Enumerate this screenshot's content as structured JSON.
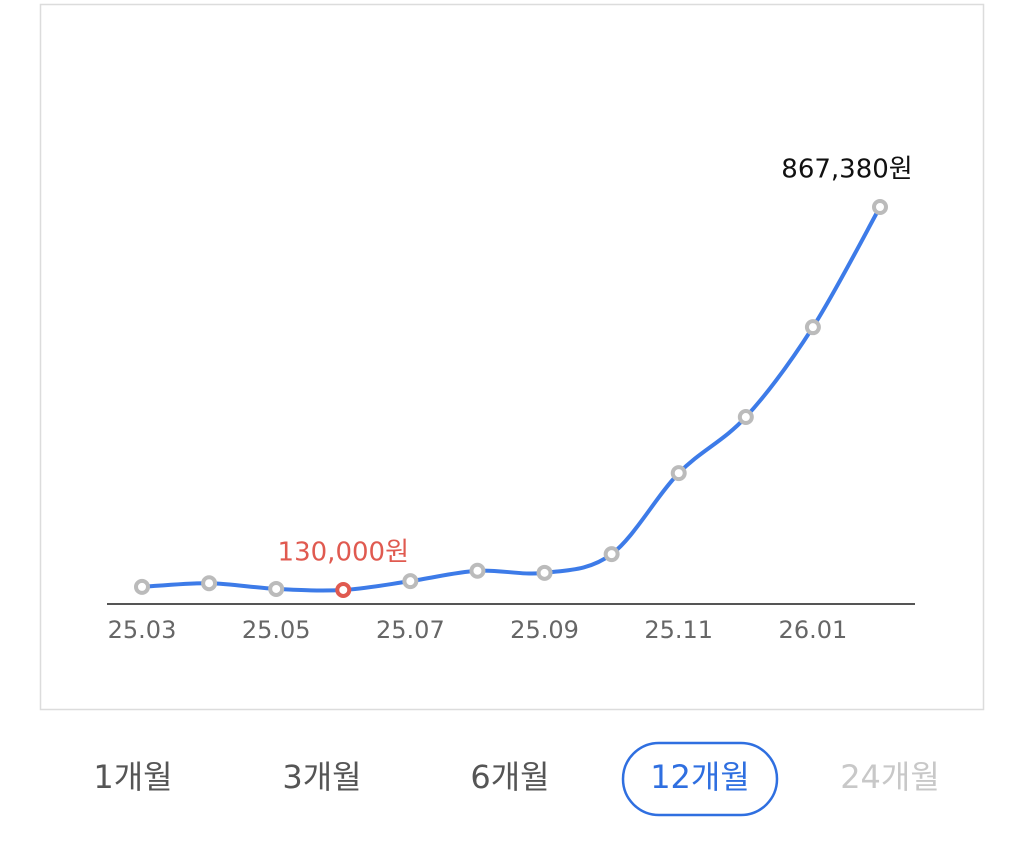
{
  "chart_data": {
    "type": "line",
    "categories": [
      "25.03",
      null,
      "25.05",
      null,
      "25.07",
      null,
      "25.09",
      null,
      "25.11",
      null,
      "26.01",
      null
    ],
    "series": [
      {
        "name": null,
        "color": "#3d7be8",
        "values": [
          136000,
          143000,
          132000,
          130000,
          147000,
          167000,
          163000,
          199000,
          355000,
          463000,
          636000,
          867380
        ],
        "value_labels": [
          null,
          null,
          null,
          "130,000원",
          null,
          null,
          null,
          null,
          null,
          null,
          null,
          "867,380원"
        ]
      }
    ],
    "ylim": [
      103000,
      867380
    ],
    "marker_color": "#bbbbbb",
    "min_color": "#e05a50",
    "max_label_color": "#111111"
  },
  "periods": [
    "1개월",
    "3개월",
    "6개월",
    "12개월",
    "24개월"
  ],
  "selected_period": 3,
  "disabled_period": 4
}
